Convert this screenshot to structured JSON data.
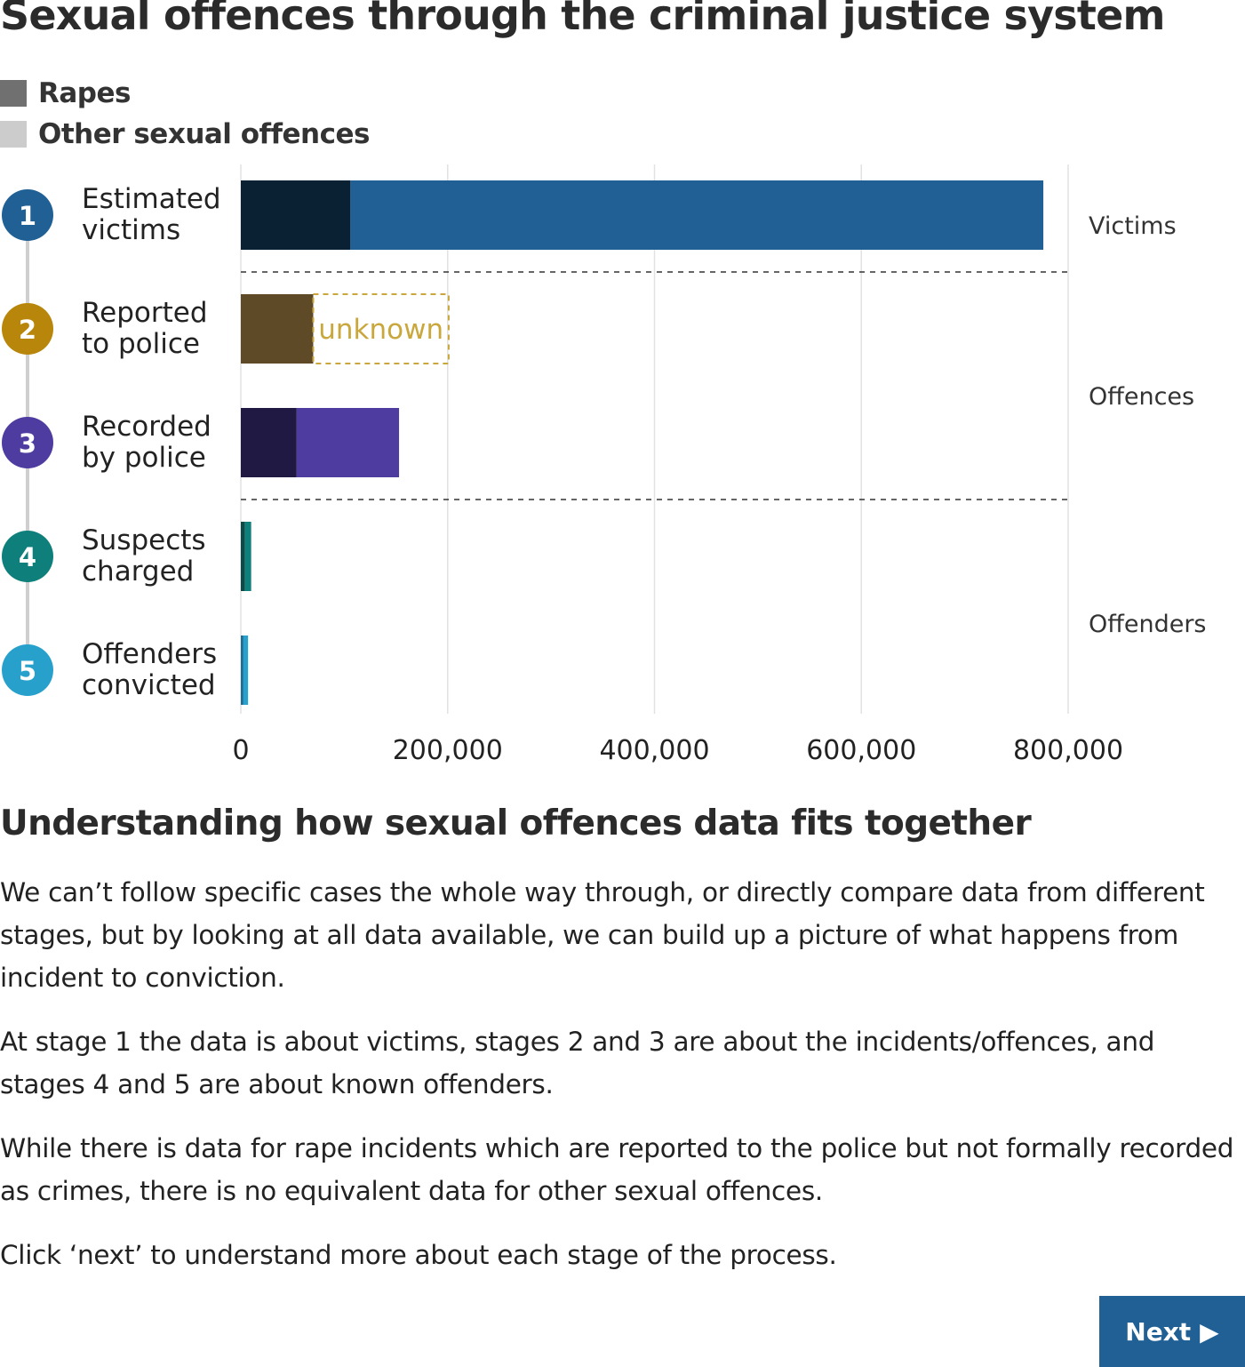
{
  "title": "Sexual offences through the criminal justice system",
  "legend": [
    {
      "label": "Rapes",
      "color": "#707070"
    },
    {
      "label": "Other sexual offences",
      "color": "#cccccc"
    }
  ],
  "chart_data": {
    "type": "bar",
    "orientation": "horizontal",
    "stacked": true,
    "categories": [
      "Estimated victims",
      "Reported to police",
      "Recorded by police",
      "Suspects charged",
      "Offenders convicted"
    ],
    "stage_numbers": [
      "1",
      "2",
      "3",
      "4",
      "5"
    ],
    "stage_colors": [
      "#206095",
      "#b8860b",
      "#4e3ca1",
      "#0e7f7a",
      "#27a0cc"
    ],
    "series": [
      {
        "name": "Rapes",
        "values": [
          106000,
          70000,
          54000,
          4000,
          2500
        ],
        "colors": [
          "#0a2033",
          "#5e4a26",
          "#1f1943",
          "#0b4a47",
          "#1a6e96"
        ]
      },
      {
        "name": "Other sexual offences",
        "values": [
          670000,
          null,
          99000,
          6000,
          4500
        ],
        "colors": [
          "#206095",
          null,
          "#4e3ca1",
          "#0e7f7a",
          "#27a0cc"
        ]
      }
    ],
    "unknown_segment": {
      "category": "Reported to police",
      "label": "unknown",
      "value": 131000,
      "color": "#c9a73c"
    },
    "x_ticks": [
      "0",
      "200,000",
      "400,000",
      "600,000",
      "800,000"
    ],
    "x_tick_values": [
      0,
      200000,
      400000,
      600000,
      800000
    ],
    "xlim": [
      0,
      800000
    ],
    "grid": true,
    "groups": [
      {
        "label": "Victims",
        "stages": [
          1
        ]
      },
      {
        "label": "Offences",
        "stages": [
          2,
          3
        ]
      },
      {
        "label": "Offenders",
        "stages": [
          4,
          5
        ]
      }
    ],
    "category_lines": [
      [
        "Estimated",
        "victims"
      ],
      [
        "Reported",
        "to police"
      ],
      [
        "Recorded",
        "by police"
      ],
      [
        "Suspects",
        "charged"
      ],
      [
        "Offenders",
        "convicted"
      ]
    ]
  },
  "subheading": "Understanding how sexual offences data fits together",
  "paragraphs": [
    "We can’t follow specific cases the whole way through, or directly compare data from different stages, but by looking at all data available, we can build up a picture of what happens from incident to conviction.",
    "At stage 1 the data is about victims, stages 2 and 3 are about the incidents/offences, and stages 4 and 5 are about known offenders.",
    "While there is data for rape incidents which are reported to the police but not formally recorded as crimes, there is no equivalent data for other sexual offences.",
    "Click ‘next’ to understand more about each stage of the process."
  ],
  "next_button": {
    "label": "Next",
    "icon": "triangle-right-icon"
  }
}
